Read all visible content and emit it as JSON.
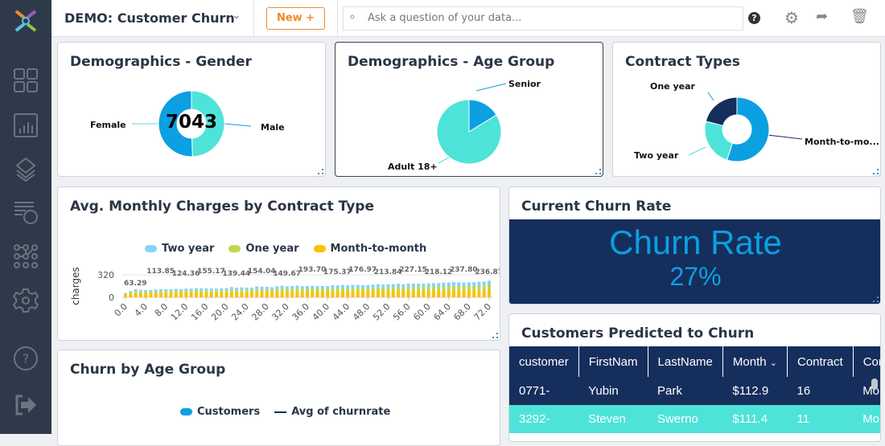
{
  "app": {
    "dashboard_title": "DEMO: Customer Churn",
    "new_button": "New +",
    "search_placeholder": "Ask a question of your data..."
  },
  "sidebar": {
    "items": [
      "dashboards-icon",
      "charts-icon",
      "data-layers-icon",
      "data-explore-icon",
      "network-icon",
      "settings-icon",
      "help-icon",
      "logout-icon"
    ]
  },
  "colors": {
    "sidebar": "#2e3a4a",
    "accent_orange": "#f08a24",
    "navy": "#152e5c",
    "teal": "#4ee3d9",
    "blue": "#0aa0e2"
  },
  "cards": {
    "gender": {
      "title": "Demographics - Gender",
      "center_value": "7043",
      "labels": [
        "Female",
        "Male"
      ]
    },
    "age": {
      "title": "Demographics - Age Group",
      "labels": [
        "Senior",
        "Adult 18+"
      ]
    },
    "contract": {
      "title": "Contract Types",
      "labels": [
        "One year",
        "Two year",
        "Month-to-mo..."
      ]
    },
    "monthly": {
      "title": "Avg. Monthly Charges by Contract Type"
    },
    "churn_rate": {
      "title": "Current Churn Rate",
      "label": "Churn Rate",
      "value": "27%"
    },
    "customers": {
      "title": "Customers Predicted to Churn",
      "columns": [
        "customer",
        "FirstNam",
        "LastName",
        "Month",
        "Contract",
        "Contract"
      ],
      "rows": [
        [
          "0771-",
          "Yubin",
          "Park",
          "$112.9",
          "16",
          "Month-"
        ],
        [
          "3292-",
          "Steven",
          "Swerno",
          "$111.4",
          "11",
          "Month-"
        ]
      ]
    },
    "age_churn": {
      "title": "Churn by Age Group",
      "legend": [
        "Customers",
        "Avg of churnrate"
      ]
    }
  },
  "chart_data": [
    {
      "type": "pie",
      "title": "Demographics - Gender",
      "labels": [
        "Female",
        "Male"
      ],
      "values": [
        3488,
        3555
      ],
      "colors": [
        "#4ee3d9",
        "#0aa0e2"
      ],
      "donut": true
    },
    {
      "type": "pie",
      "title": "Demographics - Age Group",
      "labels": [
        "Senior",
        "Adult 18+"
      ],
      "values": [
        1142,
        5901
      ],
      "colors": [
        "#0aa0e2",
        "#4ee3d9"
      ]
    },
    {
      "type": "pie",
      "title": "Contract Types",
      "labels": [
        "Month-to-month",
        "Two year",
        "One year"
      ],
      "values": [
        3875,
        1695,
        1473
      ],
      "colors": [
        "#0aa0e2",
        "#4ee3d9",
        "#152e5c"
      ],
      "donut": true
    },
    {
      "type": "bar",
      "stacked": true,
      "title": "Avg. Monthly Charges by Contract Type",
      "ylabel": "charges",
      "ylim": [
        0,
        320
      ],
      "yticks": [
        "0",
        "320"
      ],
      "xticks": [
        "0.0",
        "4.0",
        "8.0",
        "12.0",
        "16.0",
        "20.0",
        "24.0",
        "28.0",
        "32.0",
        "36.0",
        "40.0",
        "44.0",
        "48.0",
        "52.0",
        "56.0",
        "60.0",
        "64.0",
        "68.0",
        "72.0"
      ],
      "legend": "top",
      "series": [
        {
          "name": "Month-to-month",
          "color": "#ffbf00",
          "values": [
            40,
            55,
            62,
            60,
            61,
            62,
            63,
            64,
            64,
            65,
            66,
            66,
            67,
            67,
            68,
            68,
            69,
            69,
            70,
            70,
            71,
            71,
            72,
            72,
            73,
            73,
            74,
            74,
            75,
            75,
            76,
            76,
            77,
            77,
            78,
            78,
            79,
            79,
            80,
            80,
            81,
            81,
            82,
            82,
            83,
            83,
            84,
            84,
            85,
            85,
            86,
            86,
            87,
            87,
            88,
            88,
            89,
            89,
            90,
            90,
            91,
            91,
            92,
            92,
            93,
            93,
            94,
            94,
            95,
            95,
            96,
            96,
            97
          ]
        },
        {
          "name": "One year",
          "color": "#bcd94f",
          "values": [
            8,
            15,
            25,
            22,
            20,
            22,
            25,
            24,
            25,
            26,
            28,
            27,
            30,
            31,
            33,
            32,
            30,
            31,
            29,
            31,
            33,
            40,
            35,
            38,
            36,
            37,
            42,
            41,
            40,
            38,
            45,
            47,
            44,
            46,
            48,
            45,
            46,
            47,
            46,
            45,
            44,
            50,
            49,
            52,
            48,
            53,
            52,
            51,
            50,
            54,
            55,
            53,
            56,
            57,
            60,
            55,
            60,
            58,
            59,
            60,
            61,
            62,
            63,
            65,
            66,
            68,
            66,
            65,
            67,
            69,
            70,
            72,
            80
          ]
        },
        {
          "name": "Two year",
          "color": "#87d3f5",
          "values": [
            15,
            20,
            30,
            25,
            22,
            20,
            24,
            28,
            26,
            24,
            25,
            24,
            26,
            27,
            29,
            28,
            27,
            26,
            25,
            27,
            28,
            35,
            30,
            32,
            30,
            28,
            40,
            36,
            34,
            30,
            40,
            42,
            35,
            38,
            40,
            36,
            37,
            38,
            37,
            36,
            35,
            40,
            38,
            42,
            40,
            42,
            40,
            39,
            40,
            42,
            44,
            42,
            43,
            44,
            46,
            42,
            48,
            46,
            45,
            46,
            48,
            49,
            50,
            52,
            54,
            56,
            55,
            52,
            50,
            52,
            55,
            56,
            60
          ]
        }
      ],
      "data_labels": [
        "63.29",
        "113.85",
        "124.36",
        "155.17",
        "139.44",
        "154.04",
        "149.67",
        "193.70",
        "175.37",
        "176.97",
        "213.84",
        "227.15",
        "218.12",
        "237.80",
        "236.87"
      ]
    }
  ]
}
